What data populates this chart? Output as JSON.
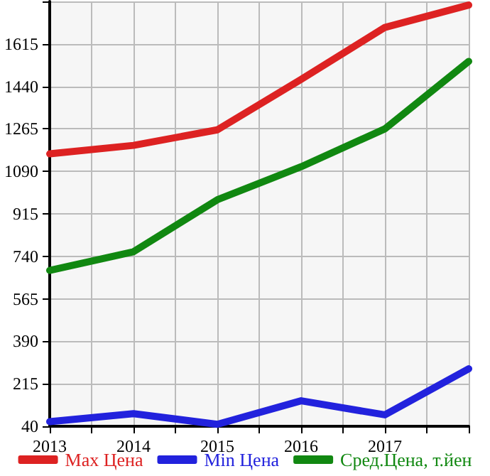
{
  "chart_data": {
    "type": "line",
    "x": [
      2013,
      2014,
      2015,
      2016,
      2017,
      2018
    ],
    "series": [
      {
        "name": "Max Цена",
        "color": "#dd2222",
        "values": [
          1162,
          1197,
          1261,
          1469,
          1683,
          1775
        ]
      },
      {
        "name": "Min Цена",
        "color": "#2222dd",
        "values": [
          59,
          92,
          48,
          145,
          87,
          277
        ]
      },
      {
        "name": "Сред.Цена, т.йен",
        "color": "#118811",
        "values": [
          682,
          759,
          973,
          1109,
          1265,
          1543
        ]
      }
    ],
    "xlim": [
      2013,
      2018
    ],
    "xticks": [
      2013,
      {
        "value": 2013.5,
        "label": null
      },
      2014,
      {
        "value": 2014.5,
        "label": null
      },
      2015,
      {
        "value": 2015.5,
        "label": null
      },
      2016,
      {
        "value": 2016.5,
        "label": null
      },
      2017,
      {
        "value": 2017.5,
        "label": null
      },
      {
        "value": 2018,
        "label": null
      }
    ],
    "ylim": [
      40,
      1790
    ],
    "yticks": [
      40,
      215,
      390,
      565,
      740,
      915,
      1090,
      1265,
      1440,
      1615,
      {
        "value": 1790,
        "label": null
      }
    ],
    "grid": true,
    "legend": "bottom",
    "marker": "none",
    "line_style": "solid"
  }
}
